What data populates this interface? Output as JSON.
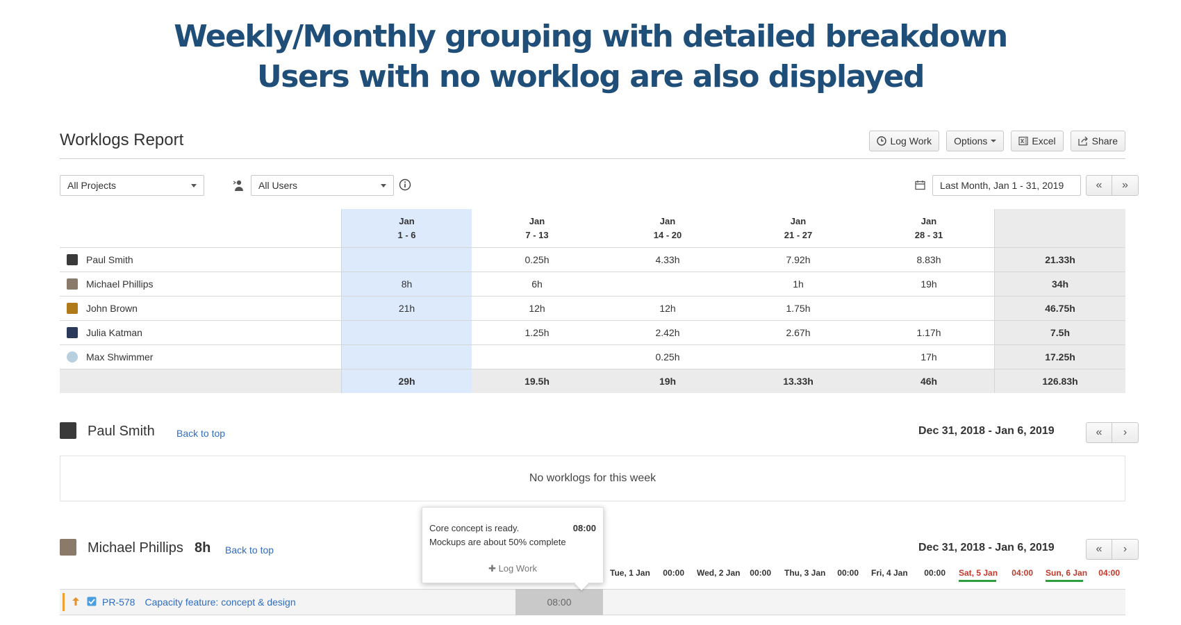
{
  "headline": {
    "line1": "Weekly/Monthly grouping with detailed breakdown",
    "line2": "Users with no worklog are also displayed"
  },
  "report": {
    "title": "Worklogs Report",
    "actions": {
      "log_work": "Log Work",
      "options": "Options",
      "excel": "Excel",
      "share": "Share"
    }
  },
  "filters": {
    "projects": "All Projects",
    "users": "All Users",
    "date_range": "Last Month, Jan 1 - 31, 2019",
    "prev": "«",
    "next": "»"
  },
  "table": {
    "columns": [
      {
        "month": "Jan",
        "days": "1 - 6"
      },
      {
        "month": "Jan",
        "days": "7 - 13"
      },
      {
        "month": "Jan",
        "days": "14 - 20"
      },
      {
        "month": "Jan",
        "days": "21 - 27"
      },
      {
        "month": "Jan",
        "days": "28 - 31"
      }
    ],
    "rows": [
      {
        "name": "Paul Smith",
        "avatar_color": "#3a3a3a",
        "values": [
          "",
          "0.25h",
          "4.33h",
          "7.92h",
          "8.83h"
        ],
        "total": "21.33h"
      },
      {
        "name": "Michael Phillips",
        "avatar_color": "#8a7a6a",
        "values": [
          "8h",
          "6h",
          "",
          "1h",
          "19h"
        ],
        "total": "34h"
      },
      {
        "name": "John Brown",
        "avatar_color": "#b07a1a",
        "values": [
          "21h",
          "12h",
          "12h",
          "1.75h",
          ""
        ],
        "total": "46.75h"
      },
      {
        "name": "Julia Katman",
        "avatar_color": "#2b3a5a",
        "values": [
          "",
          "1.25h",
          "2.42h",
          "2.67h",
          "1.17h"
        ],
        "total": "7.5h"
      },
      {
        "name": "Max Shwimmer",
        "avatar_color": "#b8cfe0",
        "values": [
          "",
          "",
          "0.25h",
          "",
          "17h"
        ],
        "total": "17.25h"
      }
    ],
    "totals": [
      "29h",
      "19.5h",
      "19h",
      "13.33h",
      "46h"
    ],
    "grand_total": "126.83h"
  },
  "sections": [
    {
      "name": "Paul Smith",
      "hours": "",
      "back_link": "Back to top",
      "range": "Dec 31, 2018 - Jan 6, 2019",
      "empty_message": "No worklogs for this week"
    },
    {
      "name": "Michael Phillips",
      "hours": "8h",
      "back_link": "Back to top",
      "range": "Dec 31, 2018 - Jan 6, 2019"
    }
  ],
  "pager": {
    "prev": "«",
    "next": "›"
  },
  "days": [
    {
      "label": "Tue, 1 Jan",
      "time": "00:00",
      "weekend": false
    },
    {
      "label": "Wed, 2 Jan",
      "time": "00:00",
      "weekend": false
    },
    {
      "label": "Thu, 3 Jan",
      "time": "00:00",
      "weekend": false
    },
    {
      "label": "Fri, 4 Jan",
      "time": "00:00",
      "weekend": false
    },
    {
      "label": "Sat, 5 Jan",
      "time": "04:00",
      "weekend": true
    },
    {
      "label": "Sun, 6 Jan",
      "time": "04:00",
      "weekend": true
    }
  ],
  "issue": {
    "key": "PR-578",
    "summary": "Capacity feature: concept & design",
    "cell_value": "08:00"
  },
  "tooltip": {
    "line1": "Core concept is ready.",
    "time": "08:00",
    "line2": "Mockups are about 50% complete",
    "action": "Log Work"
  },
  "colors": {
    "headline": "#1f4e79",
    "link": "#2f6cbf",
    "highlight_column": "#ddeafc",
    "weekend": "#c0392b",
    "accent_green": "#2e9e3e"
  }
}
